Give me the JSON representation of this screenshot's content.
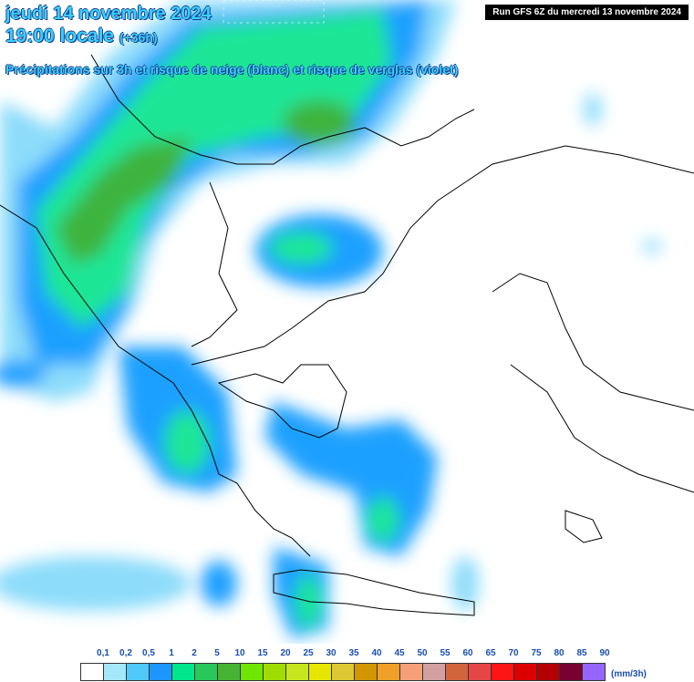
{
  "header": {
    "date": "jeudi 14 novembre 2024",
    "time": "19:00 locale",
    "lead": "(+36h)",
    "subtitle": "Précipitations sur 3h et risque de neige (blanc) et risque de verglas (violet)"
  },
  "run": "Run GFS 6Z du mercredi 13 novembre 2024",
  "legend": {
    "labels": [
      "0,1",
      "0,2",
      "0,5",
      "1",
      "2",
      "5",
      "10",
      "15",
      "20",
      "25",
      "30",
      "35",
      "40",
      "45",
      "50",
      "55",
      "60",
      "65",
      "70",
      "75",
      "80",
      "85",
      "90"
    ],
    "colors": [
      "#ffffff",
      "#a6e8fb",
      "#50c8fa",
      "#1e96ff",
      "#00e68c",
      "#28c85a",
      "#46b432",
      "#6ee600",
      "#a0dc00",
      "#c8e61e",
      "#e6e600",
      "#dcc832",
      "#d29600",
      "#f0a028",
      "#f5a078",
      "#d2a0a0",
      "#d2643c",
      "#e64646",
      "#ff1414",
      "#dc0000",
      "#b40000",
      "#780032",
      "#9664ff"
    ],
    "unit": "(mm/3h)"
  }
}
